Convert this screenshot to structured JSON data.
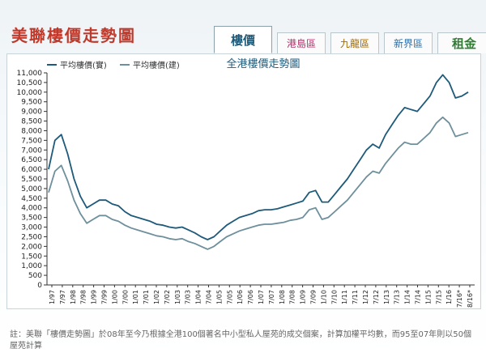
{
  "header": {
    "logo_text": "美聯樓價走勢圖"
  },
  "tabs": [
    {
      "label": "樓價",
      "color": "#1e5a7a",
      "active": true
    },
    {
      "label": "港島區",
      "color": "#b0306a",
      "active": false
    },
    {
      "label": "九龍區",
      "color": "#a06a00",
      "active": false
    },
    {
      "label": "新界區",
      "color": "#2d6fa8",
      "active": false
    },
    {
      "label": "租金",
      "color": "#2e7d32",
      "active": false
    }
  ],
  "footnote": "註：美聯「樓價走勢圖」於08年至今乃根據全港100個著名中小型私人屋苑的成交個案，計算加權平均數，而95至07年則以50個屋苑計算",
  "chart_data": {
    "type": "line",
    "title": "全港樓價走勢圖",
    "xlabel": "",
    "ylabel": "",
    "ylim": [
      0,
      11000
    ],
    "yticks": [
      0,
      500,
      1000,
      1500,
      2000,
      2500,
      3000,
      3500,
      4000,
      4500,
      5000,
      5500,
      6000,
      6500,
      7000,
      7500,
      8000,
      8500,
      9000,
      9500,
      10000,
      10500,
      11000
    ],
    "ytick_labels": [
      "0",
      "500",
      "1,000",
      "1,500",
      "2,000",
      "2,500",
      "3,000",
      "3,500",
      "4,000",
      "4,500",
      "5,000",
      "5,500",
      "6,000",
      "6,500",
      "7,000",
      "7,500",
      "8,000",
      "8,500",
      "9,000",
      "9,500",
      "10,000",
      "10,500",
      "11,000"
    ],
    "xticks": [
      "1/97",
      "7/97",
      "1/98",
      "7/98",
      "1/99",
      "7/99",
      "1/00",
      "7/00",
      "1/01",
      "7/01",
      "1/02",
      "7/02",
      "1/03",
      "7/03",
      "1/04",
      "7/04",
      "1/05",
      "7/05",
      "1/06",
      "7/06",
      "1/07",
      "7/07",
      "1/08",
      "7/08",
      "1/09",
      "7/09",
      "1/10",
      "7/10",
      "1/11",
      "7/11",
      "1/12",
      "7/12",
      "1/13",
      "7/13",
      "1/14",
      "7/14",
      "1/15",
      "7/15",
      "1/16",
      "7/16*",
      "8/16*"
    ],
    "grid": false,
    "legend_position": "top-left",
    "colors": {
      "gross": "#1e5a7a",
      "net": "#6e8f9c"
    },
    "series": [
      {
        "name": "平均樓價(實)",
        "values": [
          6000,
          7500,
          7800,
          6800,
          5500,
          4600,
          4000,
          4200,
          4400,
          4400,
          4200,
          4100,
          3800,
          3600,
          3500,
          3400,
          3300,
          3150,
          3100,
          3000,
          2950,
          3000,
          2850,
          2700,
          2500,
          2350,
          2500,
          2800,
          3100,
          3300,
          3500,
          3600,
          3700,
          3850,
          3900,
          3900,
          3950,
          4050,
          4150,
          4250,
          4350,
          4800,
          4900,
          4300,
          4300,
          4700,
          5100,
          5500,
          6000,
          6500,
          7000,
          7300,
          7100,
          7800,
          8300,
          8800,
          9200,
          9100,
          9000,
          9400,
          9800,
          10500,
          10900,
          10500,
          9700,
          9800,
          10000
        ]
      },
      {
        "name": "平均樓價(建)",
        "values": [
          4800,
          5900,
          6200,
          5400,
          4400,
          3700,
          3200,
          3400,
          3600,
          3600,
          3400,
          3300,
          3100,
          2950,
          2850,
          2750,
          2650,
          2550,
          2500,
          2400,
          2350,
          2400,
          2250,
          2150,
          2000,
          1850,
          2000,
          2250,
          2500,
          2650,
          2800,
          2900,
          3000,
          3100,
          3150,
          3150,
          3200,
          3250,
          3350,
          3400,
          3500,
          3900,
          4000,
          3400,
          3500,
          3800,
          4100,
          4400,
          4800,
          5200,
          5600,
          5900,
          5800,
          6300,
          6700,
          7100,
          7400,
          7300,
          7300,
          7600,
          7900,
          8400,
          8700,
          8400,
          7700,
          7800,
          7900
        ]
      }
    ]
  }
}
